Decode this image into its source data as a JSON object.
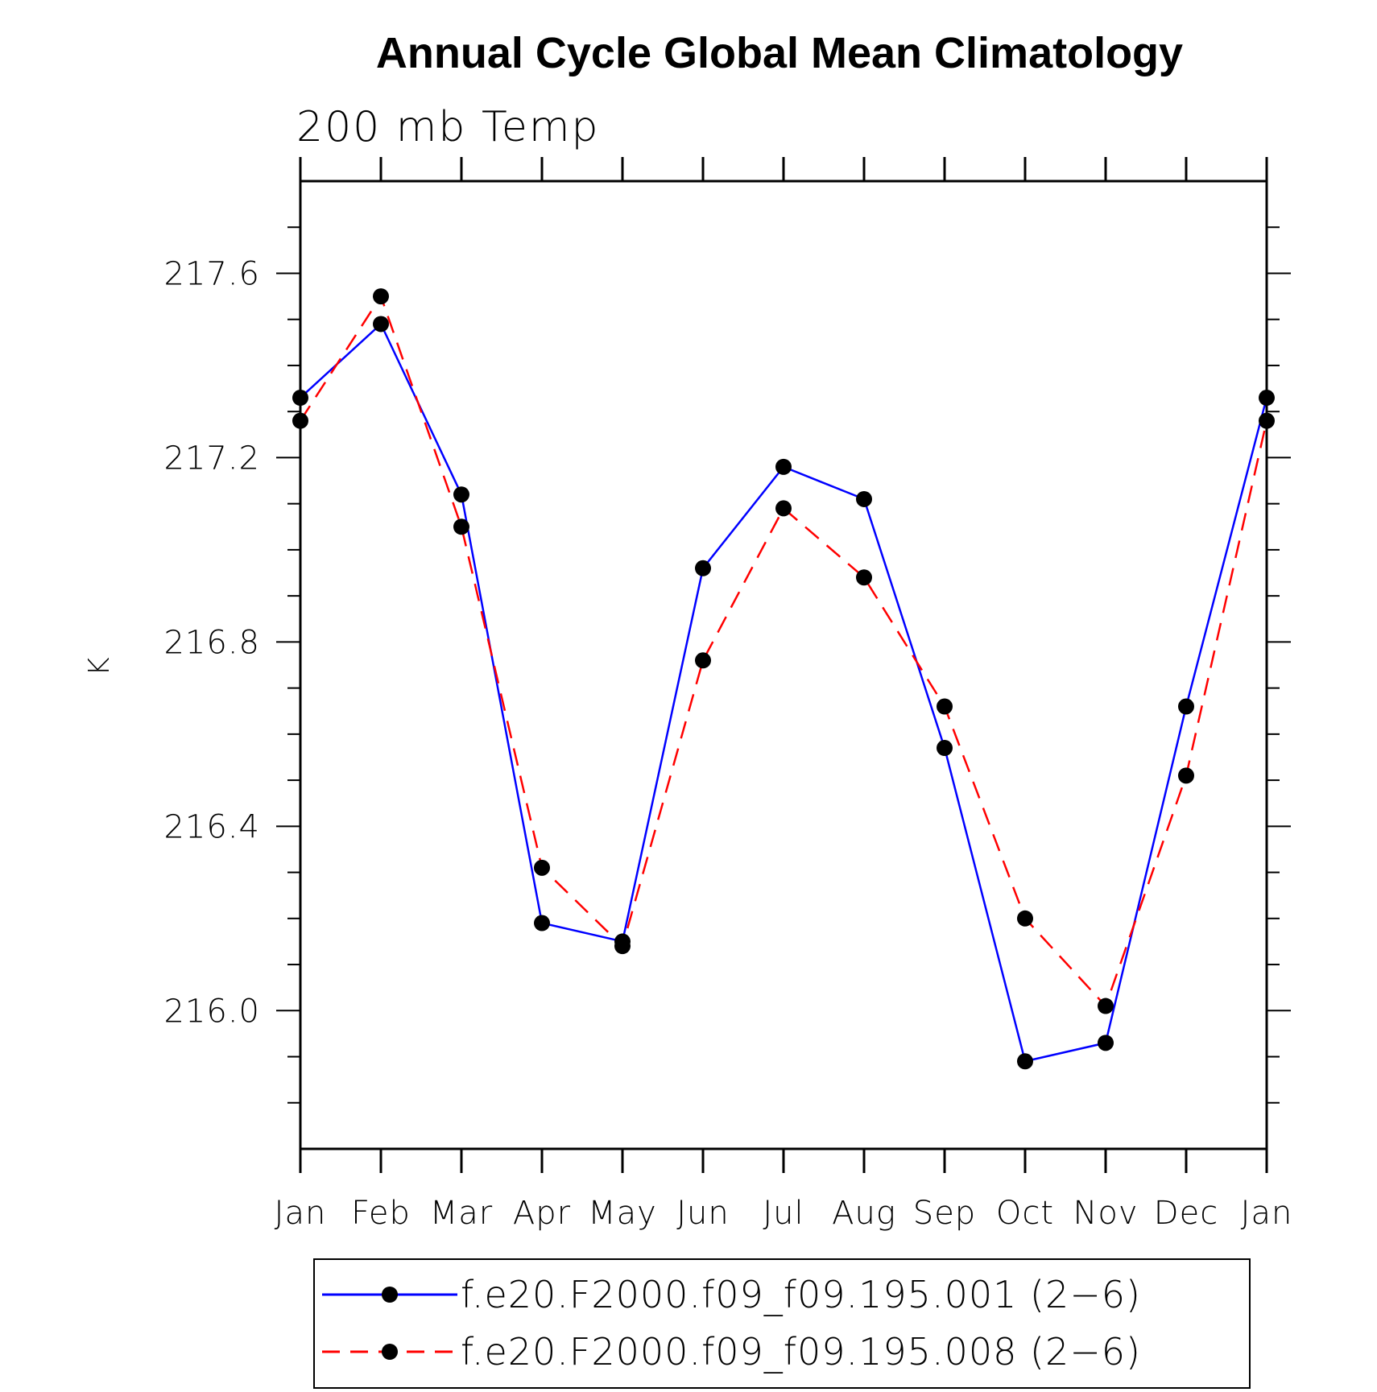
{
  "chart_data": {
    "type": "line",
    "title": "Annual Cycle Global Mean Climatology",
    "subtitle": "200 mb Temp",
    "xlabel": "",
    "ylabel": "K",
    "categories": [
      "Jan",
      "Feb",
      "Mar",
      "Apr",
      "May",
      "Jun",
      "Jul",
      "Aug",
      "Sep",
      "Oct",
      "Nov",
      "Dec",
      "Jan"
    ],
    "ylim": [
      215.7,
      217.8
    ],
    "yticks": [
      "216.0",
      "216.4",
      "216.8",
      "217.2",
      "217.6"
    ],
    "grid": false,
    "legend_position": "bottom",
    "series": [
      {
        "name": "f.e20.F2000.f09_f09.195.001 (2−6)",
        "color": "#0000ff",
        "dash": "solid",
        "values": [
          217.33,
          217.49,
          217.12,
          216.19,
          216.15,
          216.96,
          217.18,
          217.11,
          216.57,
          215.89,
          215.93,
          216.66,
          217.33
        ]
      },
      {
        "name": "f.e20.F2000.f09_f09.195.008 (2−6)",
        "color": "#ff0000",
        "dash": "dashed",
        "values": [
          217.28,
          217.55,
          217.05,
          216.31,
          216.14,
          216.76,
          217.09,
          216.94,
          216.66,
          216.2,
          216.01,
          216.51,
          217.28
        ]
      }
    ]
  }
}
